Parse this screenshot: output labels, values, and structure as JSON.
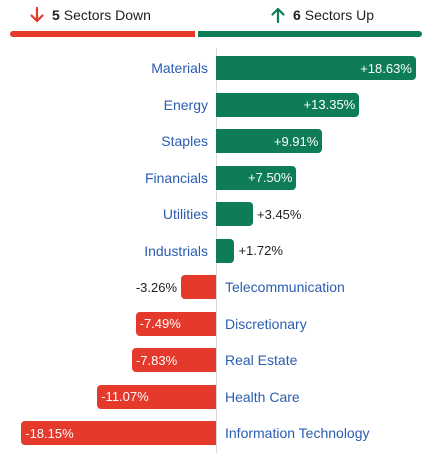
{
  "summary": {
    "down": {
      "count": "5",
      "label": "Sectors Down",
      "icon": "arrow-down-icon",
      "color": "#e4392b"
    },
    "up": {
      "count": "6",
      "label": "Sectors Up",
      "icon": "arrow-up-icon",
      "color": "#0e7c57"
    }
  },
  "colors": {
    "up": "#0e7c57",
    "down": "#e4392b",
    "label": "#2a5db0"
  },
  "chart_data": {
    "type": "bar",
    "orientation": "horizontal",
    "categories": [
      "Materials",
      "Energy",
      "Staples",
      "Financials",
      "Utilities",
      "Industrials",
      "Telecommunication",
      "Discretionary",
      "Real Estate",
      "Health Care",
      "Information Technology"
    ],
    "values": [
      18.63,
      13.35,
      9.91,
      7.5,
      3.45,
      1.72,
      -3.26,
      -7.49,
      -7.83,
      -11.07,
      -18.15
    ],
    "value_labels": [
      "+18.63%",
      "+13.35%",
      "+9.91%",
      "+7.50%",
      "+3.45%",
      "+1.72%",
      "-3.26%",
      "-7.49%",
      "-7.83%",
      "-11.07%",
      "-18.15%"
    ]
  }
}
